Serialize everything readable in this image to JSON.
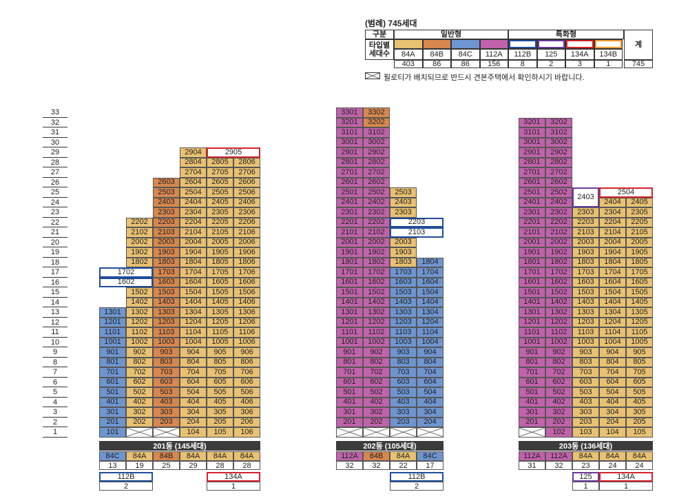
{
  "legend": {
    "title": "(범례) 745세대",
    "group_label": "구분",
    "general_label": "일반형",
    "special_label": "특화형",
    "type_label": "타입별",
    "count_label": "세대수",
    "total_label": "계",
    "total_value": "745",
    "types": [
      {
        "name": "84A",
        "count": "403",
        "color": "#e8c172",
        "kind": "fill"
      },
      {
        "name": "84B",
        "count": "86",
        "color": "#d7874f",
        "kind": "fill"
      },
      {
        "name": "84C",
        "count": "86",
        "color": "#6e95d0",
        "kind": "fill"
      },
      {
        "name": "112A",
        "count": "156",
        "color": "#c063aa",
        "kind": "fill"
      },
      {
        "name": "112B",
        "count": "8",
        "color": "#1f4c9a",
        "kind": "outline"
      },
      {
        "name": "125",
        "count": "2",
        "color": "#6a3a9a",
        "kind": "outline"
      },
      {
        "name": "134A",
        "count": "3",
        "color": "#d3222b",
        "kind": "outline"
      },
      {
        "name": "134B",
        "count": "1",
        "color": "#f29a2e",
        "kind": "outline"
      }
    ],
    "note": "필로티가 배치되므로 반드시 견본주택에서 확인하시기 바랍니다."
  },
  "floors": [
    "33",
    "32",
    "31",
    "30",
    "29",
    "28",
    "27",
    "26",
    "25",
    "24",
    "23",
    "22",
    "21",
    "20",
    "19",
    "18",
    "17",
    "16",
    "15",
    "14",
    "13",
    "12",
    "11",
    "10",
    "9",
    "8",
    "7",
    "6",
    "5",
    "4",
    "3",
    "2",
    "1"
  ],
  "buildings": [
    {
      "name": "201동 (145세대)",
      "columns": [
        {
          "type": "84C",
          "count": "13"
        },
        {
          "type": "84A",
          "count": "19"
        },
        {
          "type": "84B",
          "count": "25"
        },
        {
          "type": "84A",
          "count": "29"
        },
        {
          "type": "84A",
          "count": "28"
        },
        {
          "type": "84A",
          "count": "28"
        }
      ],
      "special": [
        {
          "type": "112B",
          "count": "2",
          "span": [
            0,
            1
          ],
          "style": "b"
        },
        {
          "type": "134A",
          "count": "1",
          "span": [
            4,
            5
          ],
          "style": "r"
        }
      ]
    },
    {
      "name": "202동 (105세대)",
      "columns": [
        {
          "type": "112A",
          "count": "32"
        },
        {
          "type": "84B",
          "count": "32"
        },
        {
          "type": "84A",
          "count": "22"
        },
        {
          "type": "84C",
          "count": "17"
        }
      ],
      "special": [
        {
          "type": "112B",
          "count": "2",
          "span": [
            2,
            3
          ],
          "style": "b"
        }
      ]
    },
    {
      "name": "203동 (136세대)",
      "columns": [
        {
          "type": "112A",
          "count": "31"
        },
        {
          "type": "112A",
          "count": "32"
        },
        {
          "type": "84A",
          "count": "23"
        },
        {
          "type": "84A",
          "count": "24"
        },
        {
          "type": "84A",
          "count": "24"
        }
      ],
      "special": [
        {
          "type": "125",
          "count": "1",
          "span": [
            2,
            2
          ],
          "style": "p"
        },
        {
          "type": "134A",
          "count": "1",
          "span": [
            3,
            4
          ],
          "style": "r"
        }
      ]
    }
  ]
}
